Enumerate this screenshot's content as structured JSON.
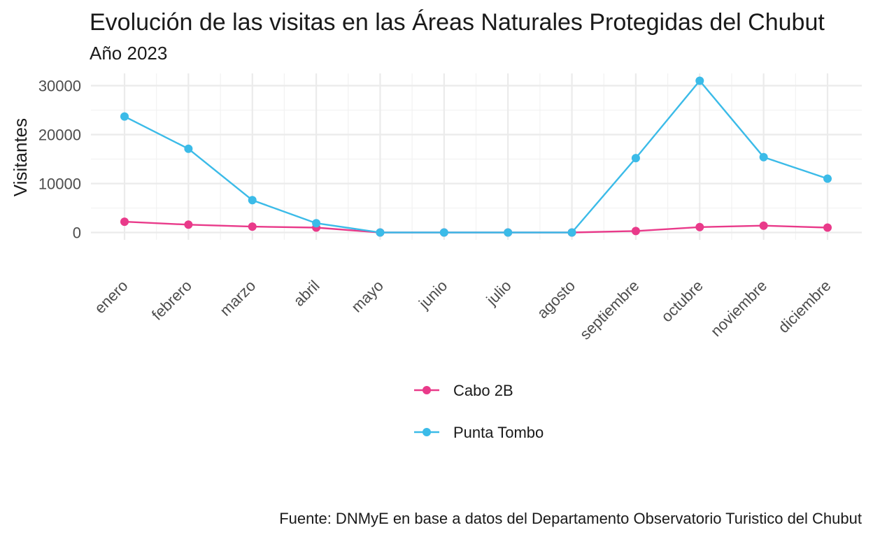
{
  "chart_data": {
    "type": "line",
    "title": "Evolución de las visitas en las Áreas Naturales Protegidas del Chubut",
    "subtitle": "Año 2023",
    "xlabel": "",
    "ylabel": "Visitantes",
    "caption": "Fuente: DNMyE en base a datos del Departamento Observatorio Turistico del Chubut",
    "categories": [
      "enero",
      "febrero",
      "marzo",
      "abril",
      "mayo",
      "junio",
      "julio",
      "agosto",
      "septiembre",
      "octubre",
      "noviembre",
      "diciembre"
    ],
    "y_ticks": [
      0,
      10000,
      20000,
      30000
    ],
    "ylim": [
      -1500,
      32500
    ],
    "grid": true,
    "legend_position": "bottom",
    "series": [
      {
        "name": "Cabo 2B",
        "color": "#e93a8a",
        "values": [
          2200,
          1600,
          1200,
          1000,
          0,
          0,
          0,
          0,
          300,
          1100,
          1400,
          1000
        ]
      },
      {
        "name": "Punta Tombo",
        "color": "#3bbbe8",
        "values": [
          23700,
          17100,
          6600,
          1900,
          0,
          0,
          0,
          0,
          15200,
          31000,
          15400,
          11000
        ]
      }
    ]
  }
}
